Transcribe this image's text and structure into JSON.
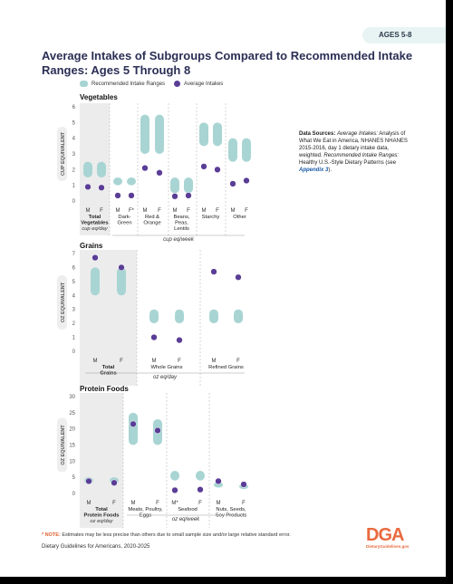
{
  "header": {
    "tab_label": "AGES 5-8",
    "title": "Average Intakes of Subgroups Compared to Recommended Intake Ranges: Ages 5 Through 8"
  },
  "legend": {
    "range_label": "Recommended Intake Ranges",
    "average_label": "Average Intakes"
  },
  "sources": {
    "lead": "Data Sources:",
    "avg_intake_label": "Average Intakes:",
    "avg_intake_text": "Analysis of What We Eat in America, NHANES NHANES 2015-2016, day 1 dietary intake data, weighted.",
    "rec_label": "Recommended Intake Ranges:",
    "rec_text": "Healthy U.S.-Style Dietary Patterns (see",
    "appendix": "Appendix 3",
    "close": ")."
  },
  "colors": {
    "range": "#a8d5d3",
    "average": "#5a3d96",
    "shade": "#ececec",
    "accent": "#e96a3f"
  },
  "chart_data": [
    {
      "type": "scatter",
      "title": "Vegetables",
      "ylabel": "CUP EQUIVALENT",
      "ylim": [
        0,
        6
      ],
      "yticks": [
        0,
        1,
        2,
        3,
        4,
        5,
        6
      ],
      "groups": [
        {
          "label": "Total\nVegetables",
          "bold": true,
          "shaded": true,
          "unit": "cup eq/day",
          "points": [
            {
              "sex": "M",
              "range": [
                1.5,
                2.5
              ],
              "avg": 0.9
            },
            {
              "sex": "F",
              "range": [
                1.5,
                2.5
              ],
              "avg": 0.85
            }
          ]
        },
        {
          "label": "Dark-\nGreen",
          "bold": false,
          "shaded": true,
          "unit": "",
          "points": [
            {
              "sex": "M",
              "range": [
                1.0,
                1.5
              ],
              "avg": 0.35
            },
            {
              "sex": "F*",
              "range": [
                1.0,
                1.5
              ],
              "avg": 0.35
            }
          ]
        },
        {
          "label": "Red &\nOrange",
          "bold": false,
          "shaded": false,
          "unit": "",
          "points": [
            {
              "sex": "M",
              "range": [
                3.0,
                5.5
              ],
              "avg": 2.1
            },
            {
              "sex": "F",
              "range": [
                3.0,
                5.5
              ],
              "avg": 1.8
            }
          ]
        },
        {
          "label": "Beans,\nPeas,\nLentils",
          "bold": false,
          "shaded": false,
          "unit": "",
          "points": [
            {
              "sex": "M",
              "range": [
                0.5,
                1.5
              ],
              "avg": 0.3
            },
            {
              "sex": "F",
              "range": [
                0.5,
                1.5
              ],
              "avg": 0.35
            }
          ]
        },
        {
          "label": "Starchy",
          "bold": false,
          "shaded": false,
          "unit": "",
          "points": [
            {
              "sex": "M",
              "range": [
                3.5,
                5.0
              ],
              "avg": 2.2
            },
            {
              "sex": "F",
              "range": [
                3.5,
                5.0
              ],
              "avg": 2.0
            }
          ]
        },
        {
          "label": "Other",
          "bold": false,
          "shaded": false,
          "unit": "",
          "points": [
            {
              "sex": "M",
              "range": [
                2.5,
                4.0
              ],
              "avg": 1.1
            },
            {
              "sex": "F",
              "range": [
                2.5,
                4.0
              ],
              "avg": 1.3
            }
          ]
        }
      ],
      "unit_label": "cup eq/week"
    },
    {
      "type": "scatter",
      "title": "Grains",
      "ylabel": "OZ EQUIVALENT",
      "ylim": [
        0,
        7
      ],
      "yticks": [
        0,
        1,
        2,
        3,
        4,
        5,
        6,
        7
      ],
      "groups": [
        {
          "label": "Total\nGrains",
          "bold": true,
          "shaded": true,
          "unit": "",
          "points": [
            {
              "sex": "M",
              "range": [
                4.0,
                6.0
              ],
              "avg": 6.7
            },
            {
              "sex": "F",
              "range": [
                4.0,
                6.0
              ],
              "avg": 6.0
            }
          ]
        },
        {
          "label": "Whole Grains",
          "bold": false,
          "shaded": false,
          "unit": "",
          "points": [
            {
              "sex": "M",
              "range": [
                2.0,
                3.0
              ],
              "avg": 1.0
            },
            {
              "sex": "F",
              "range": [
                2.0,
                3.0
              ],
              "avg": 0.8
            }
          ]
        },
        {
          "label": "Refined Grains",
          "bold": false,
          "shaded": false,
          "unit": "",
          "points": [
            {
              "sex": "M",
              "range": [
                2.0,
                3.0
              ],
              "avg": 5.7
            },
            {
              "sex": "F",
              "range": [
                2.0,
                3.0
              ],
              "avg": 5.3
            }
          ]
        }
      ],
      "unit_label": "oz eq/day"
    },
    {
      "type": "scatter",
      "title": "Protein Foods",
      "ylabel": "OZ EQUIVALENT",
      "ylim": [
        0,
        30
      ],
      "yticks": [
        0,
        5,
        10,
        15,
        20,
        25,
        30
      ],
      "groups": [
        {
          "label": "Total\nProtein Foods",
          "bold": true,
          "shaded": true,
          "unit": "oz eq/day",
          "points": [
            {
              "sex": "M",
              "range": [
                3.0,
                5.0
              ],
              "avg": 3.8
            },
            {
              "sex": "F",
              "range": [
                3.0,
                5.0
              ],
              "avg": 3.3
            }
          ]
        },
        {
          "label": "Meats, Poultry,\nEggs",
          "bold": false,
          "shaded": false,
          "unit": "",
          "points": [
            {
              "sex": "M",
              "range": [
                15.0,
                25.0
              ],
              "avg": 21.5
            },
            {
              "sex": "F",
              "range": [
                15.0,
                23.0
              ],
              "avg": 19.5
            }
          ]
        },
        {
          "label": "Seafood",
          "bold": false,
          "shaded": false,
          "unit": "",
          "points": [
            {
              "sex": "M*",
              "range": [
                4.0,
                7.0
              ],
              "avg": 1.0
            },
            {
              "sex": "F",
              "range": [
                4.0,
                7.0
              ],
              "avg": 1.2
            }
          ]
        },
        {
          "label": "Nuts, Seeds,\nSoy Products",
          "bold": false,
          "shaded": false,
          "unit": "",
          "points": [
            {
              "sex": "M",
              "range": [
                2.0,
                3.5
              ],
              "avg": 3.8
            },
            {
              "sex": "F",
              "range": [
                2.0,
                3.0
              ],
              "avg": 2.8
            }
          ]
        }
      ],
      "unit_label": "oz eq/week"
    }
  ],
  "footnote": {
    "star": "* NOTE:",
    "text": "Estimates may be less precise than others due to small sample size and/or large relative standard error."
  },
  "footer": {
    "text": "Dietary Guidelines for Americans, 2020-2025"
  },
  "logo": {
    "text": "DGA",
    "url": "DietaryGuidelines.gov"
  }
}
